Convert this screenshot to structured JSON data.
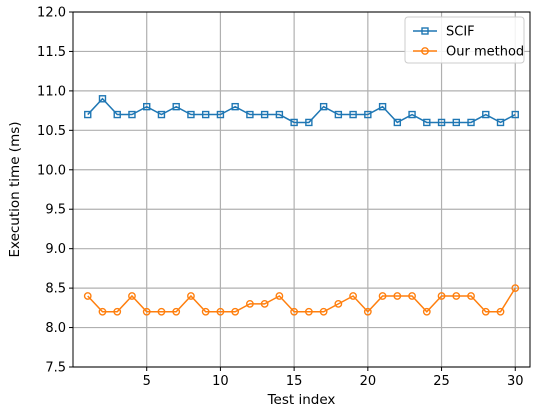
{
  "chart_data": {
    "type": "line",
    "title": "",
    "xlabel": "Test index",
    "ylabel": "Execution time (ms)",
    "xlim": [
      0,
      31
    ],
    "ylim": [
      7.5,
      12.0
    ],
    "xticks": [
      5,
      10,
      15,
      20,
      25,
      30
    ],
    "yticks": [
      7.5,
      8.0,
      8.5,
      9.0,
      9.5,
      10.0,
      10.5,
      11.0,
      11.5,
      12.0
    ],
    "grid": true,
    "legend_position": "top-right",
    "x": [
      1,
      2,
      3,
      4,
      5,
      6,
      7,
      8,
      9,
      10,
      11,
      12,
      13,
      14,
      15,
      16,
      17,
      18,
      19,
      20,
      21,
      22,
      23,
      24,
      25,
      26,
      27,
      28,
      29,
      30
    ],
    "series": [
      {
        "name": "SCIF",
        "color": "#1f77b4",
        "marker": "square",
        "values": [
          10.7,
          10.9,
          10.7,
          10.7,
          10.8,
          10.7,
          10.8,
          10.7,
          10.7,
          10.7,
          10.8,
          10.7,
          10.7,
          10.7,
          10.6,
          10.6,
          10.8,
          10.7,
          10.7,
          10.7,
          10.8,
          10.6,
          10.7,
          10.6,
          10.6,
          10.6,
          10.6,
          10.7,
          10.6,
          10.7
        ]
      },
      {
        "name": "Our method",
        "color": "#ff7f0e",
        "marker": "circle",
        "values": [
          8.4,
          8.2,
          8.2,
          8.4,
          8.2,
          8.2,
          8.2,
          8.4,
          8.2,
          8.2,
          8.2,
          8.3,
          8.3,
          8.4,
          8.2,
          8.2,
          8.2,
          8.3,
          8.4,
          8.2,
          8.4,
          8.4,
          8.4,
          8.2,
          8.4,
          8.4,
          8.4,
          8.2,
          8.2,
          8.5
        ]
      }
    ]
  }
}
